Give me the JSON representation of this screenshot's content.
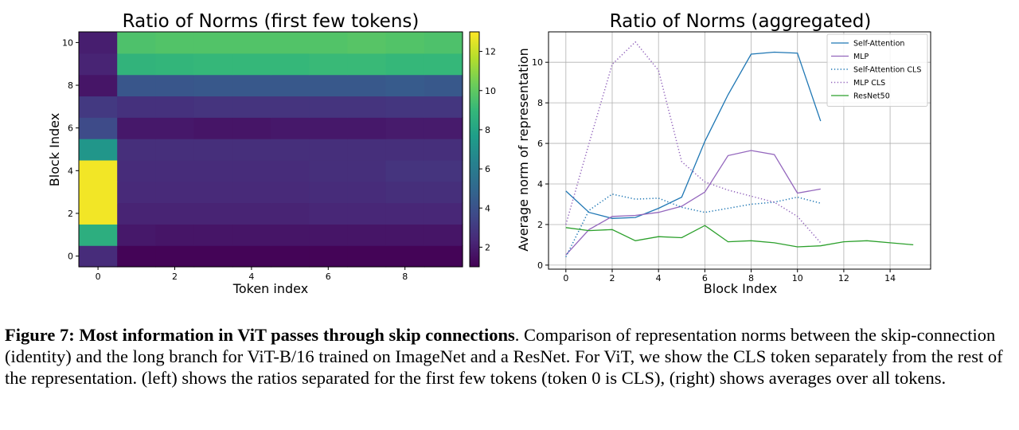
{
  "chart_data": [
    {
      "type": "heatmap",
      "title": "Ratio of Norms (first few tokens)",
      "xlabel": "Token index",
      "ylabel": "Block Index",
      "x_ticks": [
        0,
        2,
        4,
        6,
        8
      ],
      "y_ticks": [
        0,
        2,
        4,
        6,
        8,
        10
      ],
      "colorbar_ticks": [
        2,
        4,
        6,
        8,
        10,
        12
      ],
      "color_range": [
        1,
        13
      ],
      "colormap": "viridis",
      "x_range": [
        -0.5,
        9.5
      ],
      "y_range": [
        -0.5,
        10.5
      ],
      "values": [
        [
          2.5,
          1.1,
          1.1,
          1.1,
          1.1,
          1.1,
          1.1,
          1.1,
          1.1,
          1.1
        ],
        [
          8.5,
          1.8,
          1.7,
          1.7,
          1.7,
          1.7,
          1.7,
          1.7,
          1.7,
          1.7
        ],
        [
          12.8,
          2.2,
          2.2,
          2.2,
          2.2,
          2.2,
          2.3,
          2.3,
          2.3,
          2.3
        ],
        [
          12.8,
          2.4,
          2.4,
          2.4,
          2.4,
          2.4,
          2.5,
          2.5,
          2.6,
          2.6
        ],
        [
          12.8,
          2.5,
          2.5,
          2.5,
          2.5,
          2.5,
          2.6,
          2.6,
          2.8,
          2.8
        ],
        [
          7.3,
          2.6,
          2.6,
          2.6,
          2.6,
          2.6,
          2.6,
          2.6,
          2.6,
          2.6
        ],
        [
          3.7,
          1.8,
          1.8,
          1.7,
          1.7,
          1.8,
          1.8,
          1.8,
          1.9,
          1.9
        ],
        [
          3.0,
          2.7,
          2.7,
          2.8,
          2.8,
          2.8,
          2.8,
          2.8,
          2.9,
          2.9
        ],
        [
          1.7,
          4.2,
          4.2,
          4.3,
          4.3,
          4.3,
          4.3,
          4.3,
          4.4,
          4.3
        ],
        [
          2.2,
          8.8,
          8.9,
          9.0,
          9.0,
          9.0,
          9.1,
          9.1,
          9.0,
          9.0
        ],
        [
          2.0,
          9.6,
          9.7,
          9.7,
          9.7,
          9.7,
          9.7,
          9.8,
          9.7,
          9.6
        ]
      ]
    },
    {
      "type": "line",
      "title": "Ratio of Norms (aggregated)",
      "xlabel": "Block Index",
      "ylabel": "Average norm of representation",
      "xlim": [
        -0.75,
        15.75
      ],
      "ylim": [
        -0.2,
        11.5
      ],
      "x_ticks": [
        0,
        2,
        4,
        6,
        8,
        10,
        12,
        14
      ],
      "y_ticks": [
        0,
        2,
        4,
        6,
        8,
        10
      ],
      "grid": true,
      "legend": "top-right",
      "series": [
        {
          "name": "Self-Attention",
          "color": "#1f77b4",
          "style": "solid",
          "x": [
            0,
            1,
            2,
            3,
            4,
            5,
            6,
            7,
            8,
            9,
            10,
            11
          ],
          "y": [
            3.65,
            2.6,
            2.3,
            2.35,
            2.8,
            3.35,
            6.1,
            8.4,
            10.4,
            10.5,
            10.45,
            7.1
          ]
        },
        {
          "name": "MLP",
          "color": "#9467bd",
          "style": "solid",
          "x": [
            0,
            1,
            2,
            3,
            4,
            5,
            6,
            7,
            8,
            9,
            10,
            11
          ],
          "y": [
            0.5,
            1.75,
            2.4,
            2.45,
            2.6,
            2.9,
            3.6,
            5.4,
            5.65,
            5.45,
            3.55,
            3.75
          ]
        },
        {
          "name": "Self-Attention CLS",
          "color": "#1f77b4",
          "style": "dotted",
          "x": [
            0,
            1,
            2,
            3,
            4,
            5,
            6,
            7,
            8,
            9,
            10,
            11
          ],
          "y": [
            0.4,
            2.7,
            3.5,
            3.25,
            3.3,
            2.85,
            2.6,
            2.8,
            3.0,
            3.1,
            3.35,
            3.05
          ]
        },
        {
          "name": "MLP CLS",
          "color": "#9467bd",
          "style": "dotted",
          "x": [
            0,
            1,
            2,
            3,
            4,
            5,
            6,
            7,
            8,
            9,
            10,
            11
          ],
          "y": [
            2.0,
            6.0,
            9.9,
            11.0,
            9.6,
            5.1,
            4.1,
            3.7,
            3.4,
            3.1,
            2.4,
            1.1
          ]
        },
        {
          "name": "ResNet50",
          "color": "#2ca02c",
          "style": "solid",
          "x": [
            0,
            1,
            2,
            3,
            4,
            5,
            6,
            7,
            8,
            9,
            10,
            11,
            12,
            13,
            14,
            15
          ],
          "y": [
            1.85,
            1.7,
            1.75,
            1.2,
            1.4,
            1.35,
            1.95,
            1.15,
            1.2,
            1.1,
            0.9,
            0.95,
            1.15,
            1.2,
            1.1,
            1.0
          ]
        }
      ]
    }
  ],
  "caption": {
    "bold": "Figure 7: Most information in ViT passes through skip connections",
    "text": ". Comparison of representation norms between the skip-connection (identity) and the long branch for ViT-B/16 trained on ImageNet and a ResNet. For ViT, we show the CLS token separately from the rest of the representation. (left) shows the ratios separated for the first few tokens (token 0 is CLS), (right) shows averages over all tokens."
  }
}
